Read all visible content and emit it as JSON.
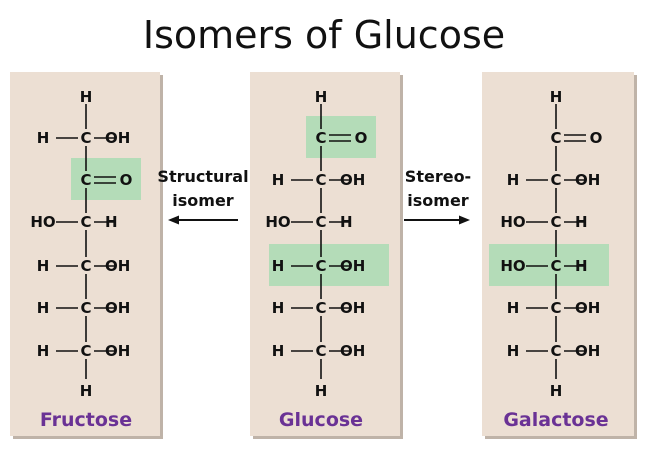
{
  "title": "Isomers of Glucose",
  "colors": {
    "panel": "#ecdfd3",
    "panel_shadow": "#bfb3a8",
    "highlight": "#b4dcb8",
    "name": "#6a3295",
    "ink": "#111111"
  },
  "arrows": [
    {
      "id": "structural",
      "lines": [
        "Structural",
        "isomer"
      ],
      "direction": "left"
    },
    {
      "id": "stereo",
      "lines": [
        "Stereo-",
        "isomer"
      ],
      "direction": "right"
    }
  ],
  "molecules": [
    {
      "id": "fructose",
      "name": "Fructose",
      "top": "H",
      "bottom": "H",
      "rows": [
        {
          "left": "H",
          "right": "OH",
          "type": "single"
        },
        {
          "left": "",
          "right": "O",
          "type": "double"
        },
        {
          "left": "HO",
          "right": "H",
          "type": "single"
        },
        {
          "left": "H",
          "right": "OH",
          "type": "single"
        },
        {
          "left": "H",
          "right": "OH",
          "type": "single"
        },
        {
          "left": "H",
          "right": "OH",
          "type": "single"
        }
      ],
      "highlight_rows": [
        1
      ]
    },
    {
      "id": "glucose",
      "name": "Glucose",
      "top": "H",
      "bottom": "H",
      "rows": [
        {
          "left": "",
          "right": "O",
          "type": "double"
        },
        {
          "left": "H",
          "right": "OH",
          "type": "single"
        },
        {
          "left": "HO",
          "right": "H",
          "type": "single"
        },
        {
          "left": "H",
          "right": "OH",
          "type": "single"
        },
        {
          "left": "H",
          "right": "OH",
          "type": "single"
        },
        {
          "left": "H",
          "right": "OH",
          "type": "single"
        }
      ],
      "highlight_rows": [
        0,
        3
      ]
    },
    {
      "id": "galactose",
      "name": "Galactose",
      "top": "H",
      "bottom": "H",
      "rows": [
        {
          "left": "",
          "right": "O",
          "type": "double"
        },
        {
          "left": "H",
          "right": "OH",
          "type": "single"
        },
        {
          "left": "HO",
          "right": "H",
          "type": "single"
        },
        {
          "left": "HO",
          "right": "H",
          "type": "single"
        },
        {
          "left": "H",
          "right": "OH",
          "type": "single"
        },
        {
          "left": "H",
          "right": "OH",
          "type": "single"
        }
      ],
      "highlight_rows": [
        3
      ]
    }
  ]
}
